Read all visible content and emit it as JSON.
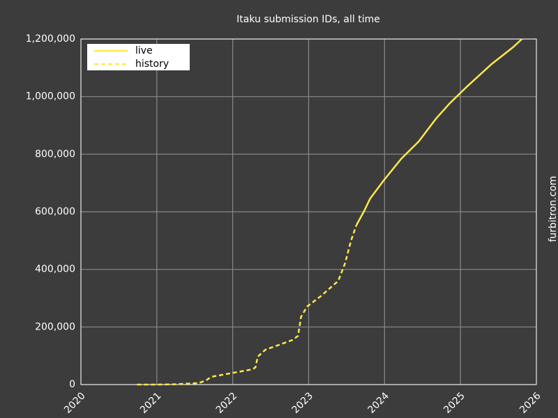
{
  "chart_data": {
    "type": "line",
    "title": "Itaku submission IDs, all time",
    "watermark": "furbitron.com",
    "xlim": [
      2020,
      2026
    ],
    "xticks": [
      2020,
      2021,
      2022,
      2023,
      2024,
      2025,
      2026
    ],
    "ylim": [
      0,
      1200000
    ],
    "yticks": [
      0,
      {
        "value": 200000,
        "label": "200,000"
      },
      {
        "value": 400000,
        "label": "400,000"
      },
      {
        "value": 600000,
        "label": "600,000"
      },
      {
        "value": 800000,
        "label": "800,000"
      },
      {
        "value": 1000000,
        "label": "1,000,000"
      },
      {
        "value": 1200000,
        "label": "1,200,000"
      }
    ],
    "grid": true,
    "legend": "upper left",
    "series": [
      {
        "name": "live",
        "color": "#ffe94a",
        "dash": false,
        "x": [
          2023.63,
          2023.73,
          2023.81,
          2023.99,
          2024.22,
          2024.45,
          2024.68,
          2024.86,
          2025.09,
          2025.41,
          2025.69,
          2025.81
        ],
        "values": [
          554000,
          602000,
          646000,
          709000,
          784000,
          844000,
          924000,
          977000,
          1036000,
          1113000,
          1171000,
          1200000
        ]
      },
      {
        "name": "history",
        "color": "#ffe94a",
        "dash": true,
        "x": [
          2020.74,
          2021.0,
          2021.23,
          2021.55,
          2021.65,
          2021.72,
          2021.97,
          2022.26,
          2022.3,
          2022.33,
          2022.43,
          2022.61,
          2022.79,
          2022.86,
          2022.9,
          2022.98,
          2023.16,
          2023.39,
          2023.48,
          2023.56,
          2023.63
        ],
        "values": [
          0,
          0,
          1000,
          5000,
          15000,
          27000,
          39000,
          53000,
          60000,
          97000,
          121000,
          138000,
          155000,
          169000,
          235000,
          271000,
          307000,
          360000,
          421000,
          501000,
          554000
        ]
      }
    ]
  }
}
